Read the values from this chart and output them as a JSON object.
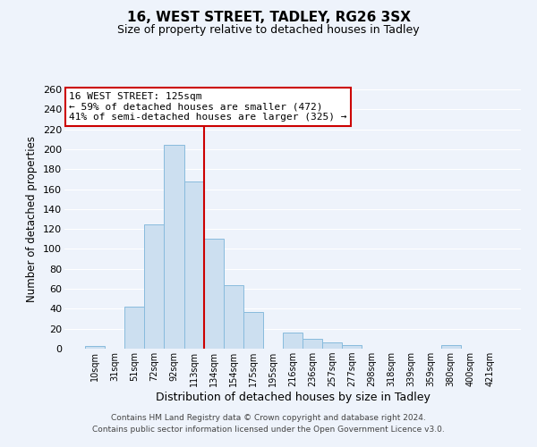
{
  "title_line1": "16, WEST STREET, TADLEY, RG26 3SX",
  "title_line2": "Size of property relative to detached houses in Tadley",
  "xlabel": "Distribution of detached houses by size in Tadley",
  "ylabel": "Number of detached properties",
  "bar_labels": [
    "10sqm",
    "31sqm",
    "51sqm",
    "72sqm",
    "92sqm",
    "113sqm",
    "134sqm",
    "154sqm",
    "175sqm",
    "195sqm",
    "216sqm",
    "236sqm",
    "257sqm",
    "277sqm",
    "298sqm",
    "318sqm",
    "339sqm",
    "359sqm",
    "380sqm",
    "400sqm",
    "421sqm"
  ],
  "bar_values": [
    3,
    0,
    42,
    125,
    204,
    168,
    110,
    64,
    37,
    0,
    16,
    10,
    6,
    4,
    0,
    0,
    0,
    0,
    4,
    0,
    0
  ],
  "bar_color": "#ccdff0",
  "bar_edge_color": "#88bbdd",
  "vline_x": 5.5,
  "vline_color": "#cc0000",
  "annotation_title": "16 WEST STREET: 125sqm",
  "annotation_line2": "← 59% of detached houses are smaller (472)",
  "annotation_line3": "41% of semi-detached houses are larger (325) →",
  "annotation_box_color": "#ffffff",
  "annotation_box_edge": "#cc0000",
  "ylim": [
    0,
    260
  ],
  "yticks": [
    0,
    20,
    40,
    60,
    80,
    100,
    120,
    140,
    160,
    180,
    200,
    220,
    240,
    260
  ],
  "footer_line1": "Contains HM Land Registry data © Crown copyright and database right 2024.",
  "footer_line2": "Contains public sector information licensed under the Open Government Licence v3.0.",
  "bg_color": "#eef3fb",
  "plot_bg_color": "#eef3fb",
  "grid_color": "#ffffff",
  "title_fontsize": 11,
  "subtitle_fontsize": 9,
  "ylabel_fontsize": 8.5,
  "xlabel_fontsize": 9
}
